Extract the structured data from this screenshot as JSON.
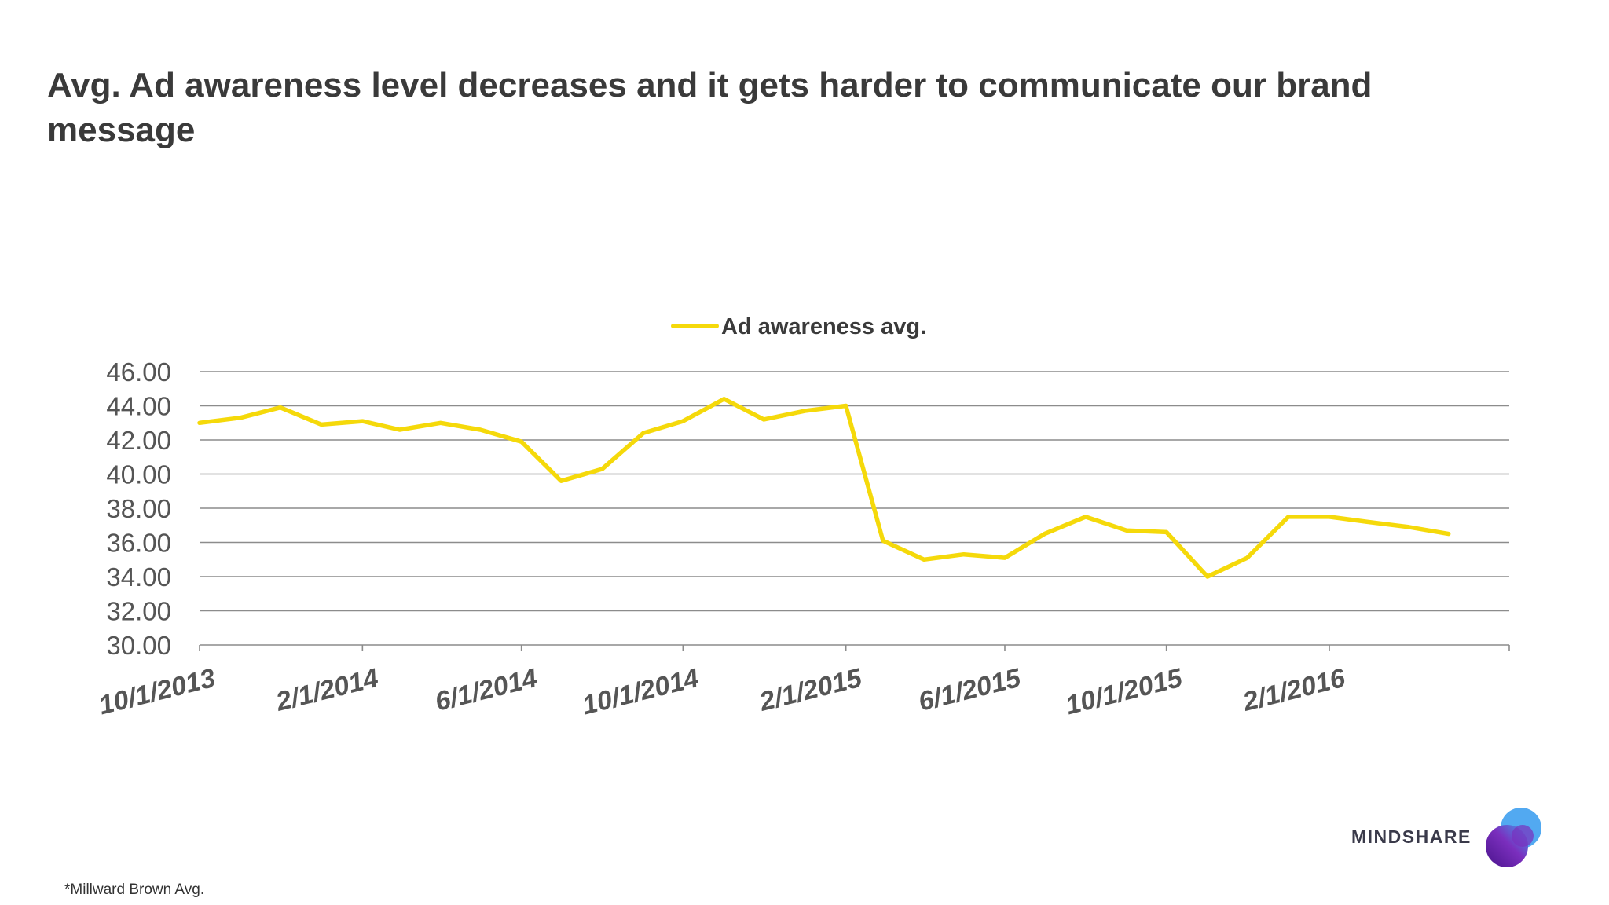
{
  "slide": {
    "title": "Avg. Ad awareness level decreases and it gets harder to communicate our brand message",
    "footnote": "*Millward Brown Avg.",
    "brand": "MINDSHARE",
    "logo_icon": "mindshare-overlapping-circles-logo"
  },
  "colors": {
    "line": "#F5D90A",
    "grid": "#8C8C8C",
    "axis_text": "#555555",
    "title": "#3a3a3a",
    "logo_purple": "#5B1E8C",
    "logo_blue": "#3FA0F0"
  },
  "chart_data": {
    "type": "line",
    "title": "",
    "xlabel": "",
    "ylabel": "",
    "legend": {
      "position": "top-center",
      "entries": [
        "Ad awareness avg."
      ]
    },
    "grid": true,
    "ylim": [
      30,
      46
    ],
    "yticks": [
      "30.00",
      "32.00",
      "34.00",
      "36.00",
      "38.00",
      "40.00",
      "42.00",
      "44.00",
      "46.00"
    ],
    "xticks": [
      "10/1/2013",
      "2/1/2014",
      "6/1/2014",
      "10/1/2014",
      "2/1/2015",
      "6/1/2015",
      "10/1/2015",
      "2/1/2016"
    ],
    "x_start": "10/1/2013",
    "x_end": "6/1/2016",
    "series": [
      {
        "name": "Ad awareness avg.",
        "x": [
          "10/1/2013",
          "11/1/2013",
          "12/1/2013",
          "1/1/2014",
          "2/1/2014",
          "3/1/2014",
          "4/1/2014",
          "5/1/2014",
          "6/1/2014",
          "7/1/2014",
          "8/1/2014",
          "9/1/2014",
          "10/1/2014",
          "11/1/2014",
          "12/1/2014",
          "1/1/2015",
          "2/1/2015",
          "3/1/2015",
          "4/1/2015",
          "5/1/2015",
          "6/1/2015",
          "7/1/2015",
          "8/1/2015",
          "9/1/2015",
          "10/1/2015",
          "11/1/2015",
          "12/1/2015",
          "1/1/2016",
          "2/1/2016",
          "3/1/2016",
          "4/1/2016",
          "5/1/2016"
        ],
        "values": [
          43.0,
          43.3,
          43.9,
          42.9,
          43.1,
          42.6,
          43.0,
          42.6,
          41.9,
          39.6,
          40.3,
          42.4,
          43.1,
          44.4,
          43.2,
          43.7,
          44.0,
          36.1,
          35.0,
          35.3,
          35.1,
          36.5,
          37.5,
          36.7,
          36.6,
          34.0,
          35.1,
          37.5,
          37.5,
          37.2,
          36.9,
          36.5
        ]
      }
    ]
  }
}
